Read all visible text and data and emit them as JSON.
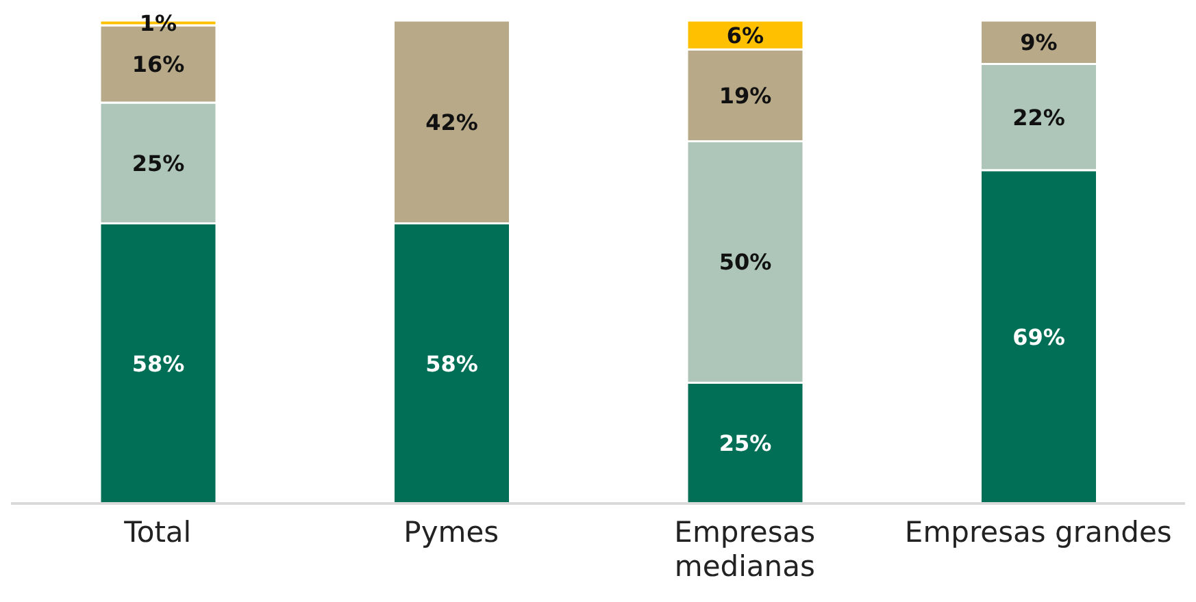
{
  "chart_data": {
    "type": "bar",
    "stacked": true,
    "tick_labels": "x",
    "categories": [
      "Total",
      "Pymes",
      "Empresas medianas",
      "Empresas grandes"
    ],
    "series": [
      {
        "color": "#006f55",
        "values": [
          58,
          58,
          25,
          69
        ],
        "value_labels": [
          "58%",
          "58%",
          "25%",
          "69%"
        ]
      },
      {
        "color": "#aec5b9",
        "values": [
          25,
          null,
          50,
          22
        ],
        "value_labels": [
          "25%",
          null,
          "50%",
          "22%"
        ]
      },
      {
        "color": "#b8aa88",
        "values": [
          16,
          42,
          19,
          9
        ],
        "value_labels": [
          "16%",
          "42%",
          "19%",
          "9%"
        ]
      },
      {
        "color": "#ffc000",
        "values": [
          1,
          null,
          6,
          null
        ],
        "value_labels": [
          "1%",
          null,
          "6%",
          null
        ]
      }
    ]
  }
}
